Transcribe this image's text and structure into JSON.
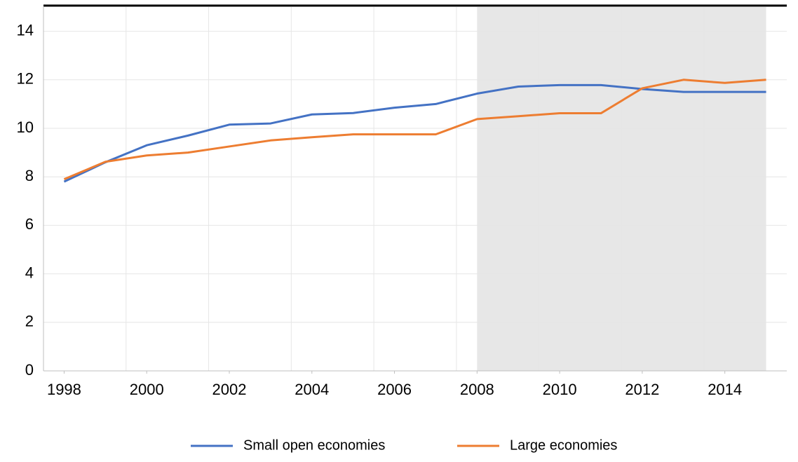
{
  "chart_data": {
    "type": "line",
    "x": [
      1998,
      1999,
      2000,
      2001,
      2002,
      2003,
      2004,
      2005,
      2006,
      2007,
      2008,
      2009,
      2010,
      2011,
      2012,
      2013,
      2014,
      2015
    ],
    "series": [
      {
        "name": "Small open economies",
        "color": "#4472c4",
        "values": [
          7.8,
          8.6,
          9.3,
          9.7,
          10.15,
          10.2,
          10.57,
          10.63,
          10.85,
          11.0,
          11.43,
          11.72,
          11.78,
          11.78,
          11.62,
          11.5,
          11.5,
          11.5
        ]
      },
      {
        "name": "Large economies",
        "color": "#ed7d31",
        "values": [
          7.9,
          8.62,
          8.88,
          9.0,
          9.25,
          9.5,
          9.63,
          9.75,
          9.75,
          9.75,
          10.38,
          10.5,
          10.62,
          10.62,
          11.65,
          12.0,
          11.87,
          12.0
        ]
      }
    ],
    "xlim": [
      1997.5,
      2015.5
    ],
    "xticks": [
      1998,
      2000,
      2002,
      2004,
      2006,
      2008,
      2010,
      2012,
      2014
    ],
    "ylim": [
      0,
      15
    ],
    "yticks": [
      0,
      2,
      4,
      6,
      8,
      10,
      12,
      14
    ],
    "shaded_range": [
      2008,
      2015
    ],
    "shade_color": "#e7e7e7",
    "grid": true,
    "legend": "bottom"
  }
}
